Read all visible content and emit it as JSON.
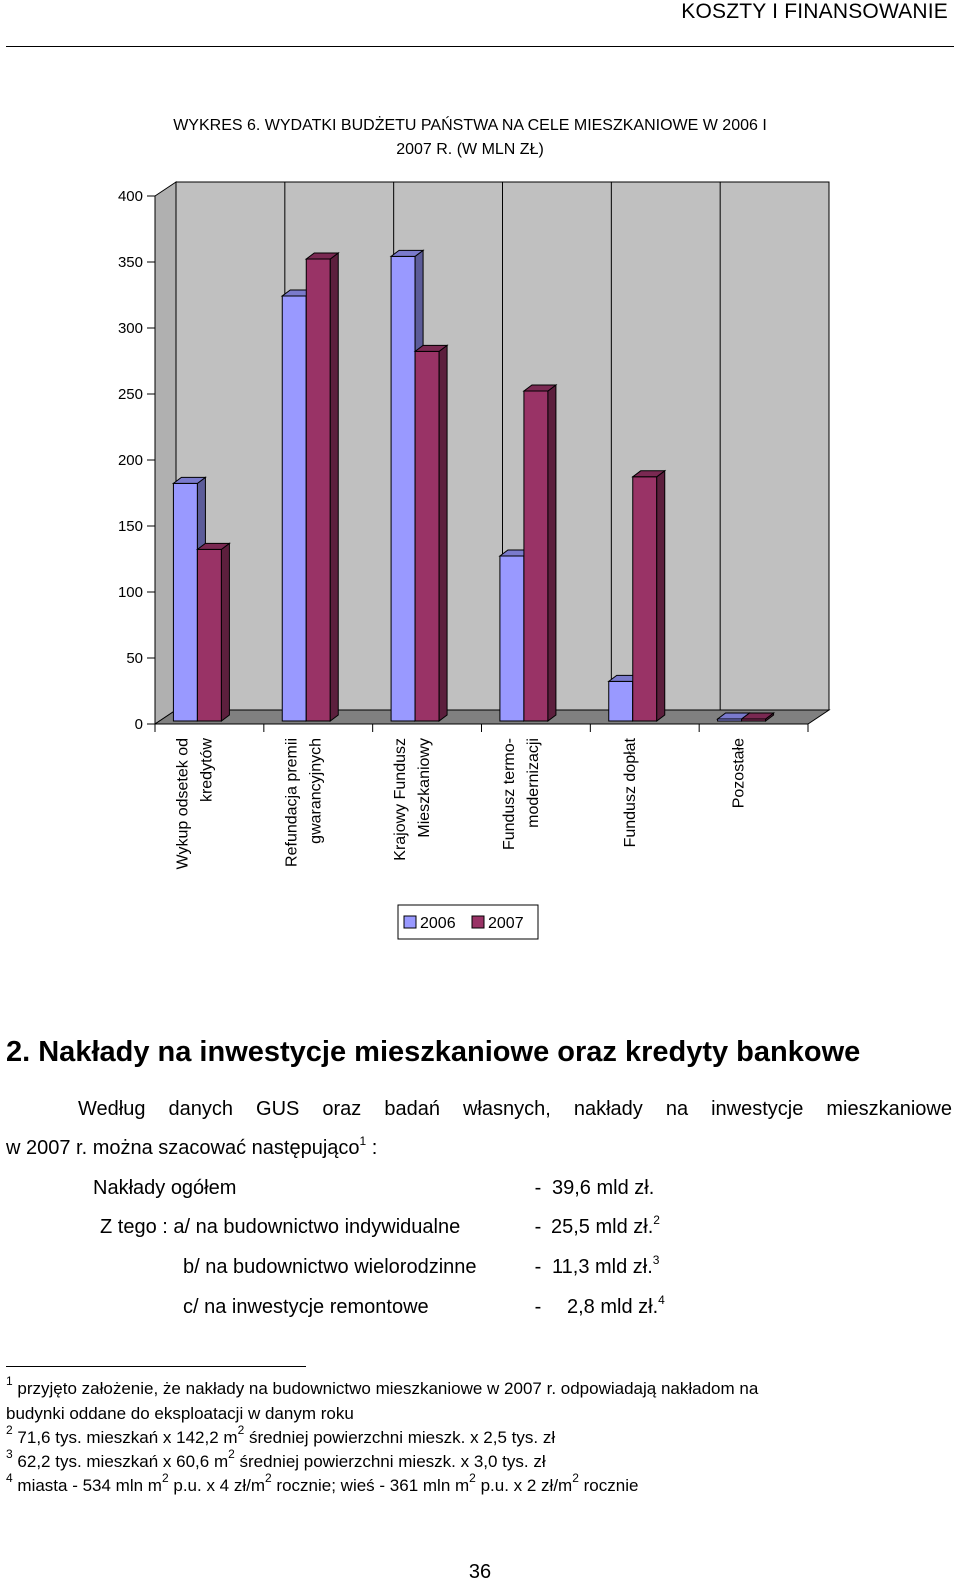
{
  "header": {
    "running_title": "KOSZTY I FINANSOWANIE"
  },
  "chart": {
    "title_line1": "WYKRES 6. WYDATKI BUDŻETU PAŃSTWA NA CELE MIESZKANIOWE W 2006 I",
    "title_line2": "2007 R. (W MLN ZŁ)"
  },
  "chart_data": {
    "type": "bar",
    "title": "WYKRES 6. WYDATKI BUDŻETU PAŃSTWA NA CELE MIESZKANIOWE W 2006 I 2007 R. (W MLN ZŁ)",
    "categories": [
      [
        "Wykup odsetek od",
        "kredytów"
      ],
      [
        "Refundacja premii",
        "gwarancyjnych"
      ],
      [
        "Krajowy Fundusz",
        "Mieszkaniowy"
      ],
      [
        "Fundusz termo-",
        "modernizacji"
      ],
      [
        "Fundusz dopłat"
      ],
      [
        "Pozostałe"
      ]
    ],
    "series": [
      {
        "name": "2006",
        "values": [
          180,
          322,
          352,
          125,
          30,
          1
        ]
      },
      {
        "name": "2007",
        "values": [
          130,
          350,
          280,
          250,
          185,
          1
        ]
      }
    ],
    "yticks": [
      "0",
      "50",
      "100",
      "150",
      "200",
      "250",
      "300",
      "350",
      "400"
    ],
    "ylim": [
      0,
      400
    ],
    "grid": "vertical",
    "legend_position": "bottom",
    "colors": {
      "2006": "#9999ff",
      "2007": "#993366",
      "wall": "#c0c0c0"
    }
  },
  "section": {
    "heading": "2. Nakłady na inwestycje mieszkaniowe oraz kredyty bankowe",
    "intro_line1": "Według danych GUS oraz badań własnych, nakłady na inwestycje mieszkaniowe",
    "intro_line2": "w 2007 r. można szacować następująco",
    "intro_line2_sup": "1",
    "intro_line2_end": " :",
    "rows": [
      {
        "label": "Nakłady ogółem",
        "dash": "-",
        "amount": "39,6 mld zł.",
        "sup": ""
      },
      {
        "label": "Z tego : a/ na budownictwo indywidualne",
        "dash": "-",
        "amount": "25,5 mld zł.",
        "sup": "2"
      },
      {
        "label": "b/ na budownictwo wielorodzinne",
        "dash": "-",
        "amount": "11,3 mld zł.",
        "sup": "3"
      },
      {
        "label": "c/ na inwestycje remontowe",
        "dash": "-",
        "amount": "2,8 mld zł.",
        "sup": "4"
      }
    ]
  },
  "footnotes": {
    "fn1_num": "1",
    "fn1_line1": " przyjęto założenie, że nakłady na budownictwo mieszkaniowe w 2007 r. odpowiadają nakładom na",
    "fn1_line2": "budynki oddane do eksploatacji w danym roku",
    "fn2_num": "2",
    "fn2_a": " 71,6 tys. mieszkań x 142,2 m",
    "fn2_sup": "2",
    "fn2_b": " średniej powierzchni mieszk. x 2,5 tys. zł",
    "fn3_num": "3",
    "fn3_a": " 62,2 tys. mieszkań x  60,6 m",
    "fn3_sup": "2",
    "fn3_b": " średniej powierzchni mieszk. x 3,0 tys. zł",
    "fn4_num": "4",
    "fn4_a": " miasta - 534 mln m",
    "fn4_sup1": "2",
    "fn4_b": " p.u. x 4 zł/m",
    "fn4_sup2": "2",
    "fn4_c": " rocznie; wieś - 361 mln m",
    "fn4_sup3": "2",
    "fn4_d": " p.u. x 2 zł/m",
    "fn4_sup4": "2",
    "fn4_e": " rocznie"
  },
  "page": {
    "number": "36"
  }
}
